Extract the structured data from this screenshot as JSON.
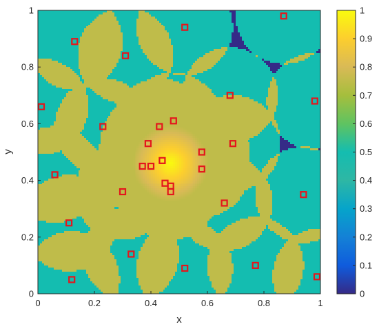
{
  "chart_data": {
    "type": "heatmap",
    "xlabel": "x",
    "ylabel": "y",
    "xlim": [
      0,
      1
    ],
    "ylim": [
      0,
      1
    ],
    "x_ticks": [
      "0",
      "0.2",
      "0.4",
      "0.6",
      "0.8",
      "1"
    ],
    "y_ticks": [
      "0",
      "0.2",
      "0.4",
      "0.6",
      "0.8",
      "1"
    ],
    "colorbar": {
      "range": [
        0,
        1
      ],
      "ticks": [
        "0",
        "0.1",
        "0.2",
        "0.3",
        "0.4",
        "0.5",
        "0.6",
        "0.7",
        "0.8",
        "0.9",
        "1"
      ],
      "colormap": "parula"
    },
    "grid": false,
    "background_level": 0.5,
    "uncovered_level": 0,
    "sensing_radius": 0.17,
    "center_level": 1.0,
    "marker_color": "#e4161c",
    "points": [
      {
        "x": 0.13,
        "y": 0.89
      },
      {
        "x": 0.31,
        "y": 0.84
      },
      {
        "x": 0.52,
        "y": 0.94
      },
      {
        "x": 0.87,
        "y": 0.98
      },
      {
        "x": 0.01,
        "y": 0.66
      },
      {
        "x": 0.68,
        "y": 0.7
      },
      {
        "x": 0.98,
        "y": 0.68
      },
      {
        "x": 0.23,
        "y": 0.59
      },
      {
        "x": 0.43,
        "y": 0.59
      },
      {
        "x": 0.48,
        "y": 0.61
      },
      {
        "x": 0.39,
        "y": 0.53
      },
      {
        "x": 0.58,
        "y": 0.5
      },
      {
        "x": 0.69,
        "y": 0.53
      },
      {
        "x": 0.44,
        "y": 0.47
      },
      {
        "x": 0.37,
        "y": 0.45
      },
      {
        "x": 0.4,
        "y": 0.45
      },
      {
        "x": 0.58,
        "y": 0.44
      },
      {
        "x": 0.06,
        "y": 0.42
      },
      {
        "x": 0.45,
        "y": 0.39
      },
      {
        "x": 0.47,
        "y": 0.38
      },
      {
        "x": 0.47,
        "y": 0.36
      },
      {
        "x": 0.3,
        "y": 0.36
      },
      {
        "x": 0.94,
        "y": 0.35
      },
      {
        "x": 0.66,
        "y": 0.32
      },
      {
        "x": 0.11,
        "y": 0.25
      },
      {
        "x": 0.33,
        "y": 0.14
      },
      {
        "x": 0.77,
        "y": 0.1
      },
      {
        "x": 0.52,
        "y": 0.09
      },
      {
        "x": 0.12,
        "y": 0.05
      },
      {
        "x": 1.0,
        "y": 0.06
      }
    ]
  }
}
